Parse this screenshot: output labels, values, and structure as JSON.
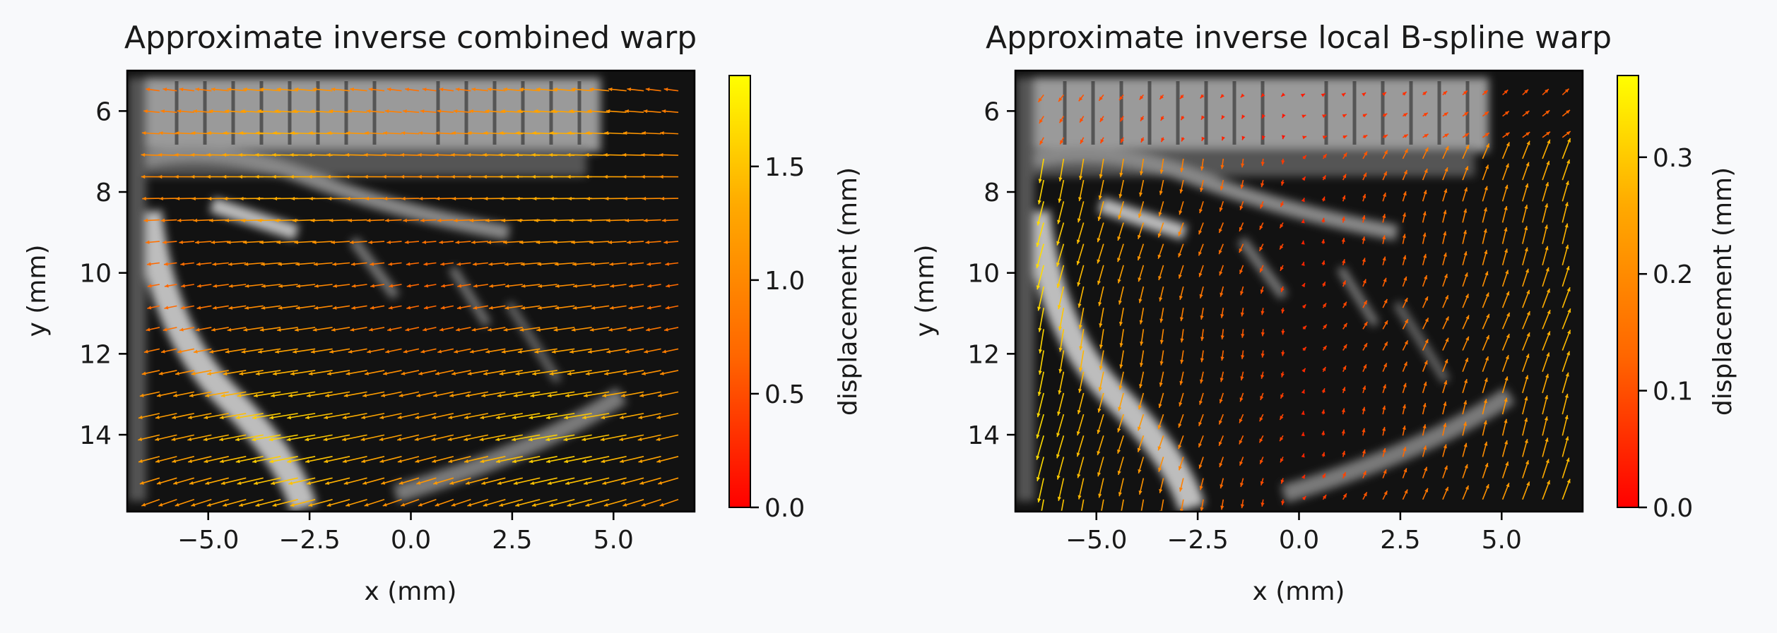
{
  "chart_data": [
    {
      "type": "heatmap",
      "title": "Approximate inverse combined warp",
      "xlabel": "x (mm)",
      "ylabel": "y (mm)",
      "xlim": [
        -7.0,
        7.0
      ],
      "ylim": [
        15.9,
        5.0
      ],
      "x_ticks": [
        -5.0,
        -2.5,
        0.0,
        2.5,
        5.0
      ],
      "x_tick_labels": [
        "−5.0",
        "−2.5",
        "0.0",
        "2.5",
        "5.0"
      ],
      "y_ticks": [
        6,
        8,
        10,
        12,
        14
      ],
      "y_tick_labels": [
        "6",
        "8",
        "10",
        "12",
        "14"
      ],
      "colorbar": {
        "label": "displacement (mm)",
        "range": [
          0.0,
          1.9
        ],
        "ticks": [
          0.0,
          0.5,
          1.0,
          1.5
        ],
        "tick_labels": [
          "0.0",
          "0.5",
          "1.0",
          "1.5"
        ],
        "colormap": [
          "#ff0000",
          "#ff6600",
          "#ffaa00",
          "#ffff00"
        ]
      },
      "vector_field": {
        "x_range": [
          -6.2,
          6.6
        ],
        "y_range": [
          5.5,
          15.6
        ],
        "rows": 20,
        "cols": 31,
        "note_dx_mean": -1.3,
        "dy_gradient": [
          -0.1,
          0.35
        ]
      },
      "background": "grayscale ultrasound image"
    },
    {
      "type": "heatmap",
      "title": "Approximate inverse local B-spline warp",
      "xlabel": "x (mm)",
      "ylabel": "y (mm)",
      "xlim": [
        -7.0,
        7.0
      ],
      "ylim": [
        15.9,
        5.0
      ],
      "x_ticks": [
        -5.0,
        -2.5,
        0.0,
        2.5,
        5.0
      ],
      "x_tick_labels": [
        "−5.0",
        "−2.5",
        "0.0",
        "2.5",
        "5.0"
      ],
      "y_ticks": [
        6,
        8,
        10,
        12,
        14
      ],
      "y_tick_labels": [
        "6",
        "8",
        "10",
        "12",
        "14"
      ],
      "colorbar": {
        "label": "displacement (mm)",
        "range": [
          0.0,
          0.37
        ],
        "ticks": [
          0.0,
          0.1,
          0.2,
          0.3
        ],
        "tick_labels": [
          "0.0",
          "0.1",
          "0.2",
          "0.3"
        ],
        "colormap": [
          "#ff0000",
          "#ff6600",
          "#ffaa00",
          "#ffff00"
        ]
      },
      "vector_field": {
        "x_range": [
          -6.3,
          6.5
        ],
        "y_range": [
          5.6,
          15.6
        ],
        "rows": 20,
        "cols": 27,
        "note_dx_mean": -0.05,
        "dy_gradient": [
          0.0,
          0.3
        ]
      },
      "background": "grayscale ultrasound image"
    }
  ]
}
